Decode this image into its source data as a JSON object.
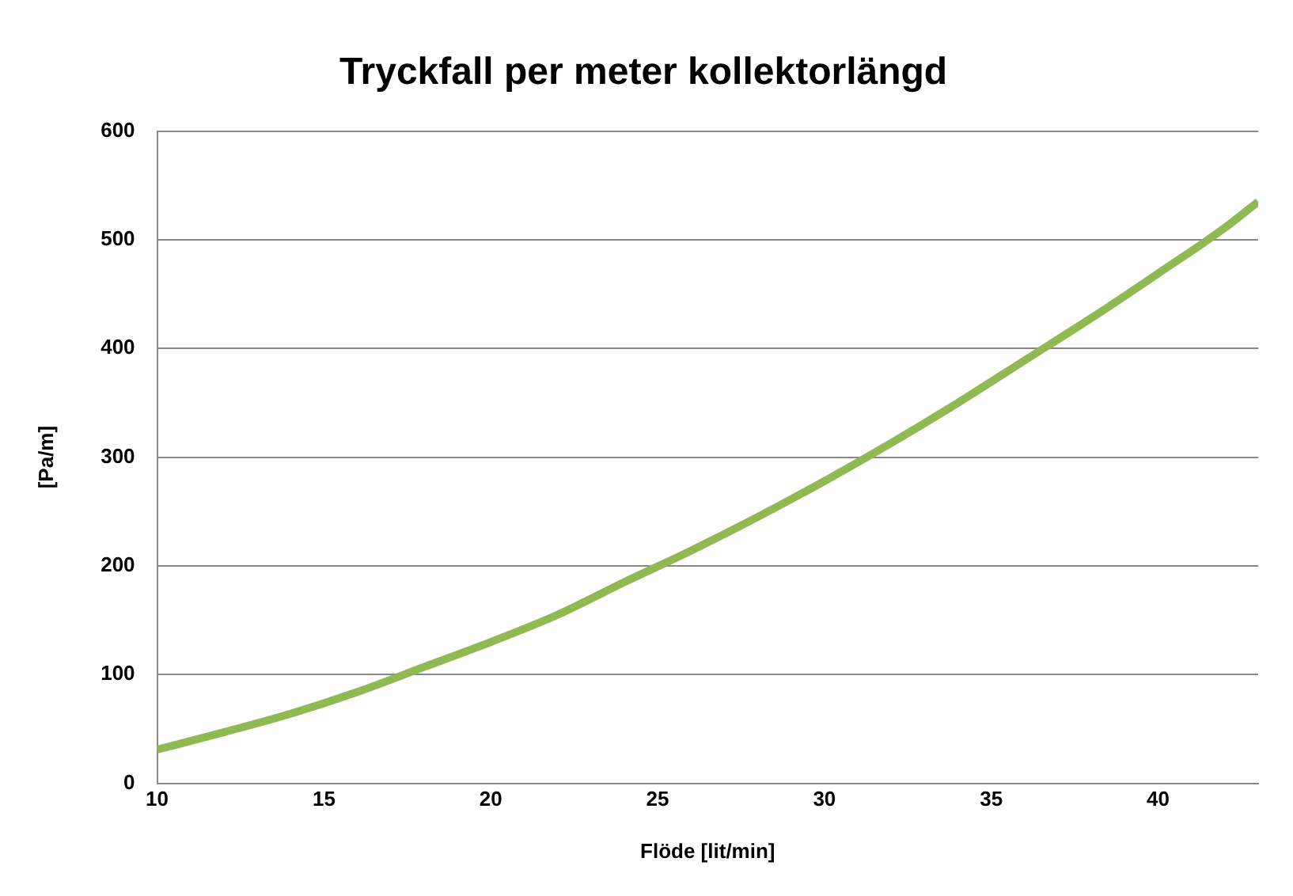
{
  "chart_data": {
    "type": "line",
    "title": "Tryckfall per meter kollektorlängd",
    "xlabel": "Flöde [lit/min]",
    "ylabel": "[Pa/m]",
    "x": [
      10,
      12,
      14,
      16,
      18,
      20,
      22,
      24,
      26,
      28,
      30,
      32,
      34,
      36,
      38,
      40,
      42,
      43
    ],
    "series": [
      {
        "color": "#8fba52",
        "values": [
          31,
          47,
          64,
          84,
          107,
          130,
          155,
          185,
          214,
          245,
          278,
          313,
          350,
          389,
          428,
          469,
          511,
          535
        ]
      }
    ],
    "xlim": [
      10,
      43
    ],
    "xticks": [
      10,
      15,
      20,
      25,
      30,
      35,
      40
    ],
    "ylim": [
      0,
      600
    ],
    "yticks": [
      0,
      100,
      200,
      300,
      400,
      500,
      600
    ],
    "grid": "y",
    "legend": false,
    "marker": "none",
    "line_style": "solid"
  }
}
